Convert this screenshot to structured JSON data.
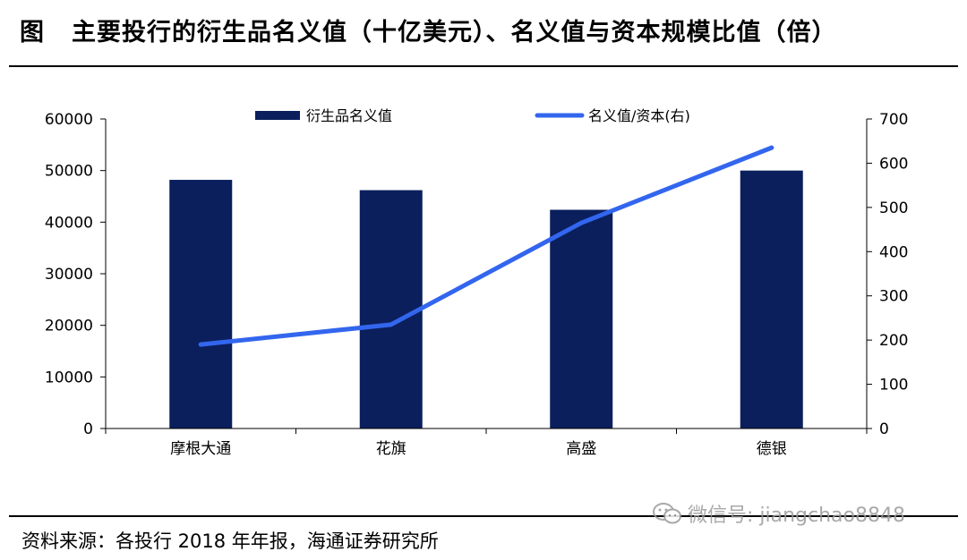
{
  "title": {
    "fig_label": "图",
    "text": "主要投行的衍生品名义值（十亿美元）、名义值与资本规模比值（倍）"
  },
  "source": "资料来源：各投行 2018 年年报，海通证券研究所",
  "watermark": {
    "text": "微信号: jiangchao8848",
    "icon": "wechat-icon"
  },
  "colors": {
    "bar": "#0a1f5c",
    "line": "#3366ee",
    "axis": "#000000"
  },
  "chart_data": {
    "type": "bar",
    "categories": [
      "摩根大通",
      "花旗",
      "高盛",
      "德银"
    ],
    "series": [
      {
        "name": "衍生品名义值",
        "type": "bar",
        "axis": "left",
        "values": [
          48200,
          46200,
          42400,
          50000
        ]
      },
      {
        "name": "名义值/资本(右)",
        "type": "line",
        "axis": "right",
        "values": [
          190,
          235,
          465,
          635
        ]
      }
    ],
    "y_left": {
      "range": [
        0,
        60000
      ],
      "ticks": [
        0,
        10000,
        20000,
        30000,
        40000,
        50000,
        60000
      ]
    },
    "y_right": {
      "range": [
        0,
        700
      ],
      "ticks": [
        0,
        100,
        200,
        300,
        400,
        500,
        600,
        700
      ]
    },
    "legend": "top",
    "grid": false
  }
}
